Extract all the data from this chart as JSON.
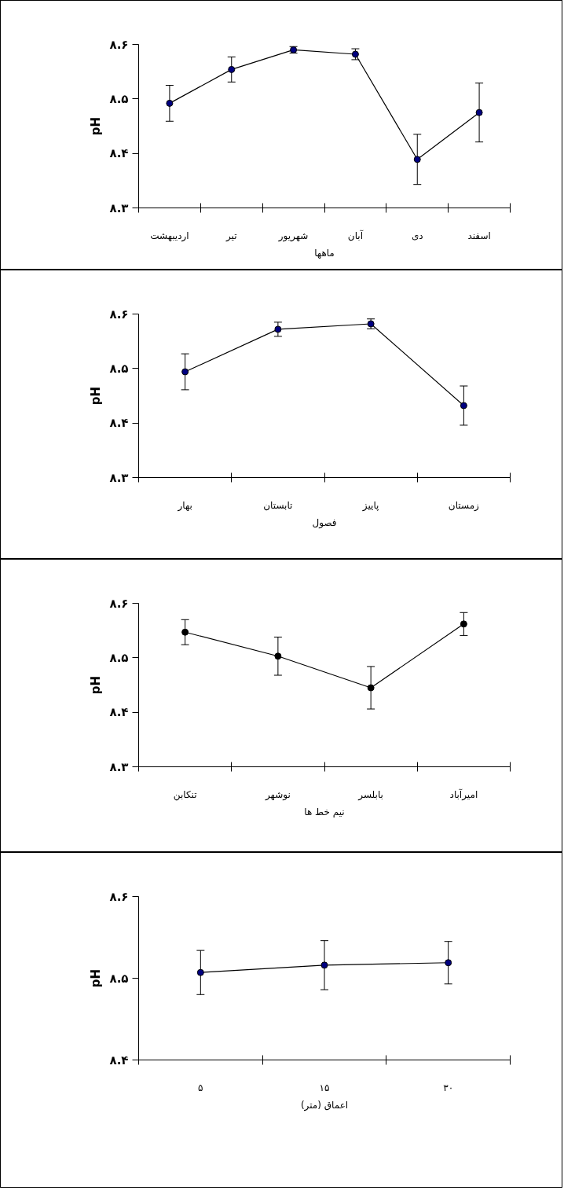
{
  "chart_data": [
    {
      "type": "line",
      "xlabel": "ماهها",
      "ylabel": "pH",
      "categories": [
        "اردیبهشت",
        "تیر",
        "شهریور",
        "آبان",
        "دی",
        "اسفند"
      ],
      "marker": "circle",
      "grid": false,
      "ylim": [
        8.3,
        8.6
      ],
      "yticks": [
        {
          "value": 8.3,
          "label": "۸.۳"
        },
        {
          "value": 8.4,
          "label": "۸.۴"
        },
        {
          "value": 8.5,
          "label": "۸.۵"
        },
        {
          "value": 8.6,
          "label": "۸.۶"
        }
      ],
      "series": [
        {
          "color": "#000080",
          "values": [
            8.492,
            8.554,
            8.59,
            8.582,
            8.389,
            8.475
          ],
          "errors": [
            0.033,
            0.023,
            0.006,
            0.01,
            0.046,
            0.054
          ]
        }
      ]
    },
    {
      "type": "line",
      "xlabel": "فصول",
      "ylabel": "pH",
      "categories": [
        "بهار",
        "تابستان",
        "پاییز",
        "زمستان"
      ],
      "marker": "circle",
      "grid": false,
      "ylim": [
        8.3,
        8.6
      ],
      "yticks": [
        {
          "value": 8.3,
          "label": "۸.۳"
        },
        {
          "value": 8.4,
          "label": "۸.۴"
        },
        {
          "value": 8.5,
          "label": "۸.۵"
        },
        {
          "value": 8.6,
          "label": "۸.۶"
        }
      ],
      "series": [
        {
          "color": "#000080",
          "values": [
            8.494,
            8.572,
            8.582,
            8.432
          ],
          "errors": [
            0.033,
            0.013,
            0.009,
            0.036
          ]
        }
      ]
    },
    {
      "type": "line",
      "xlabel": "نیم خط ها",
      "ylabel": "pH",
      "categories": [
        "تنکابن",
        "نوشهر",
        "بابلسر",
        "امیرآباد"
      ],
      "marker": "circle",
      "grid": false,
      "ylim": [
        8.3,
        8.6
      ],
      "yticks": [
        {
          "value": 8.3,
          "label": "۸.۳"
        },
        {
          "value": 8.4,
          "label": "۸.۴"
        },
        {
          "value": 8.5,
          "label": "۸.۵"
        },
        {
          "value": 8.6,
          "label": "۸.۶"
        }
      ],
      "series": [
        {
          "color": "#000000",
          "values": [
            8.547,
            8.503,
            8.445,
            8.562
          ],
          "errors": [
            0.023,
            0.035,
            0.039,
            0.021
          ]
        }
      ]
    },
    {
      "type": "line",
      "xlabel": "اعماق (متر)",
      "ylabel": "pH",
      "categories": [
        "۵",
        "۱۵",
        "۳۰"
      ],
      "marker": "circle",
      "grid": false,
      "ylim": [
        8.4,
        8.6
      ],
      "yticks": [
        {
          "value": 8.4,
          "label": "۸.۴"
        },
        {
          "value": 8.5,
          "label": "۸.۵"
        },
        {
          "value": 8.6,
          "label": "۸.۶"
        }
      ],
      "series": [
        {
          "color": "#000080",
          "values": [
            8.507,
            8.516,
            8.519
          ],
          "errors": [
            0.027,
            0.03,
            0.026
          ]
        }
      ]
    }
  ]
}
